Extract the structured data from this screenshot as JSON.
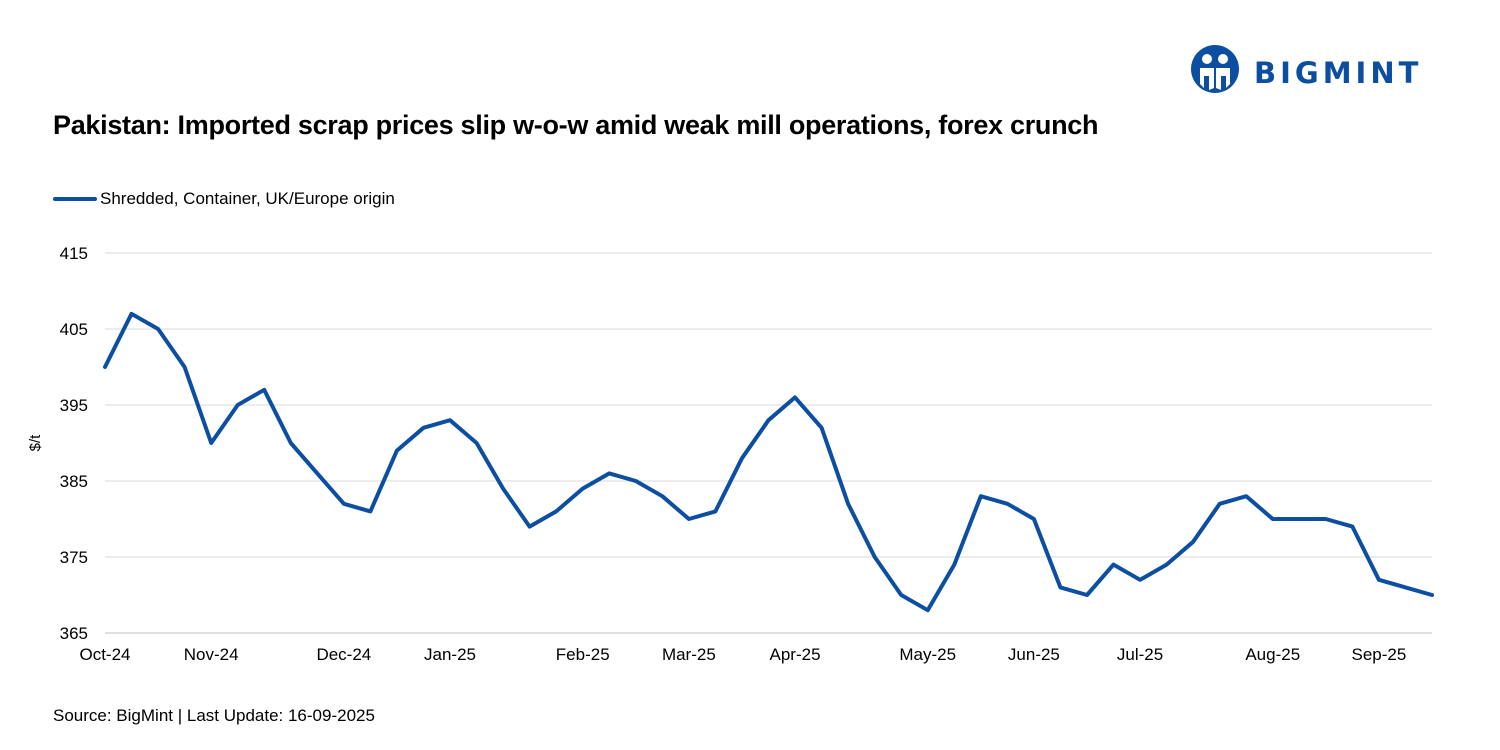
{
  "brand": {
    "name": "BIGMINT",
    "color": "#0b4ea2"
  },
  "chart_data": {
    "type": "line",
    "title": "Pakistan: Imported scrap prices slip w-o-w amid weak mill operations, forex crunch",
    "xlabel": "",
    "ylabel": "$/t",
    "ylim": [
      365,
      415
    ],
    "yticks": [
      365,
      375,
      385,
      395,
      405,
      415
    ],
    "grid": true,
    "legend_position": "top-left",
    "x_tick_labels": [
      "Oct-24",
      "Nov-24",
      "Dec-24",
      "Jan-25",
      "Feb-25",
      "Mar-25",
      "Apr-25",
      "May-25",
      "Jun-25",
      "Jul-25",
      "Aug-25",
      "Sep-25"
    ],
    "x_tick_indices": [
      0,
      4,
      9,
      13,
      18,
      22,
      26,
      31,
      35,
      39,
      44,
      48
    ],
    "series": [
      {
        "name": "Shredded, Container, UK/Europe origin",
        "color": "#0b4ea2",
        "values": [
          400,
          407,
          405,
          400,
          390,
          395,
          397,
          390,
          386,
          382,
          381,
          389,
          392,
          393,
          390,
          384,
          379,
          381,
          384,
          386,
          385,
          383,
          380,
          381,
          388,
          393,
          396,
          392,
          382,
          375,
          370,
          368,
          374,
          383,
          382,
          380,
          371,
          370,
          374,
          372,
          374,
          377,
          382,
          383,
          380,
          380,
          380,
          379,
          372,
          371,
          370
        ]
      }
    ]
  },
  "source": "Source: BigMint | Last Update: 16-09-2025"
}
